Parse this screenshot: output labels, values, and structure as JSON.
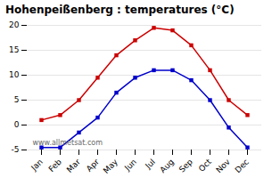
{
  "chart_data": {
    "type": "line",
    "title": "Hohenpeißenberg : temperatures (°C)",
    "categories": [
      "Jan",
      "Feb",
      "Mar",
      "Apr",
      "May",
      "Jun",
      "Jul",
      "Aug",
      "Sep",
      "Oct",
      "Nov",
      "Dec"
    ],
    "series": [
      {
        "color": "#cc0000",
        "marker": "square",
        "values": [
          1,
          2,
          5,
          9.5,
          14,
          17,
          19.5,
          19,
          16,
          11,
          5,
          2
        ]
      },
      {
        "color": "#0000cc",
        "marker": "square",
        "values": [
          -4.5,
          -4.5,
          -1.5,
          1.5,
          6.5,
          9.5,
          11,
          11,
          9,
          5,
          -0.5,
          -4.5
        ]
      }
    ],
    "ylim": [
      -5,
      20
    ],
    "yticks": [
      -5,
      0,
      5,
      10,
      15,
      20
    ],
    "grid": true,
    "annotations": [
      "www.allmetsat.com"
    ]
  }
}
